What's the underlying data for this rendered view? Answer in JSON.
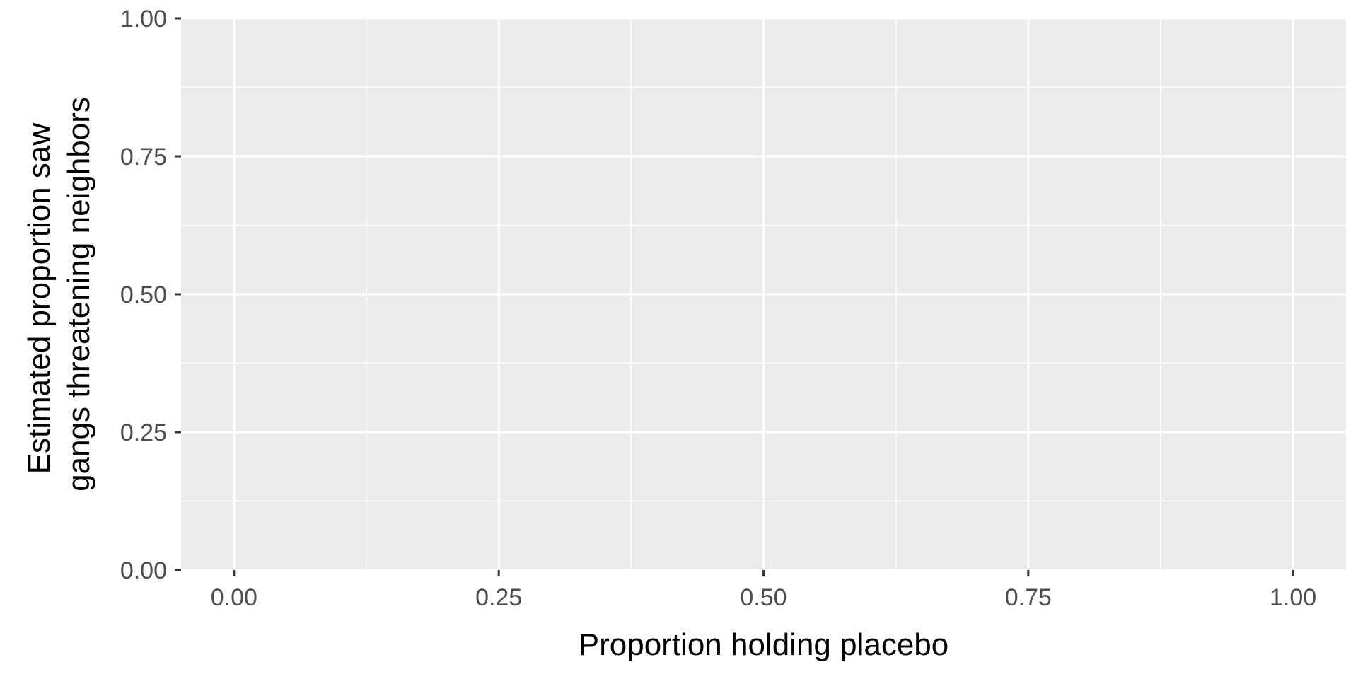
{
  "chart_data": {
    "type": "scatter",
    "title": "",
    "xlabel": "Proportion holding placebo",
    "ylabel_lines": [
      "Estimated proportion saw",
      "gangs threatening neighbors"
    ],
    "xlim": [
      -0.05,
      1.05
    ],
    "ylim": [
      0.0,
      1.0
    ],
    "x_ticks": [
      {
        "value": 0.0,
        "label": "0.00"
      },
      {
        "value": 0.25,
        "label": "0.25"
      },
      {
        "value": 0.5,
        "label": "0.50"
      },
      {
        "value": 0.75,
        "label": "0.75"
      },
      {
        "value": 1.0,
        "label": "1.00"
      }
    ],
    "y_ticks": [
      {
        "value": 0.0,
        "label": "0.00"
      },
      {
        "value": 0.25,
        "label": "0.25"
      },
      {
        "value": 0.5,
        "label": "0.50"
      },
      {
        "value": 0.75,
        "label": "0.75"
      },
      {
        "value": 1.0,
        "label": "1.00"
      }
    ],
    "x_minor": [
      0.125,
      0.375,
      0.625,
      0.875
    ],
    "y_minor": [
      0.125,
      0.375,
      0.625,
      0.875
    ],
    "grid": true,
    "series": [],
    "colors": {
      "panel": "#ebebeb",
      "grid": "#ffffff",
      "tick": "#333333"
    }
  }
}
